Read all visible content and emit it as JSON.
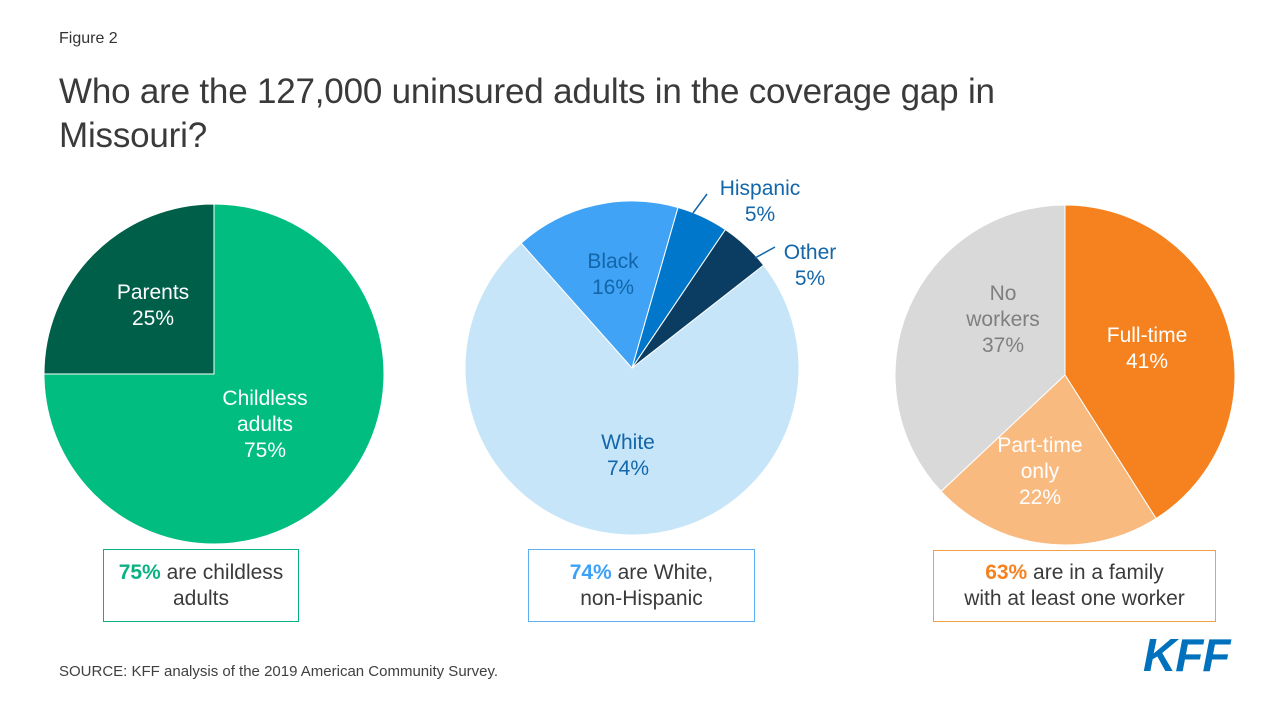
{
  "figure_label": "Figure 2",
  "title_lines": [
    "Who are the 127,000 uninsured adults in the coverage gap in",
    "Missouri?"
  ],
  "chart_data": [
    {
      "type": "pie",
      "name": "family-status",
      "start_angle": 0,
      "slices": [
        {
          "id": "childless-adults",
          "label": "Childless adults",
          "value": 75,
          "color": "#02bd80",
          "label_lines": [
            "Childless",
            "adults",
            "75%"
          ]
        },
        {
          "id": "parents",
          "label": "Parents",
          "value": 25,
          "color": "#005f48",
          "label_lines": [
            "Parents",
            "25%"
          ]
        }
      ]
    },
    {
      "type": "pie",
      "name": "race-ethnicity",
      "start_angle": 52,
      "slices": [
        {
          "id": "white",
          "label": "White",
          "value": 74,
          "color": "#c6e5f8",
          "label_lines": [
            "White",
            "74%"
          ]
        },
        {
          "id": "black",
          "label": "Black",
          "value": 16,
          "color": "#41a3f5",
          "label_lines": [
            "Black",
            "16%"
          ]
        },
        {
          "id": "hispanic",
          "label": "Hispanic",
          "value": 5,
          "color": "#0077cb",
          "label_lines": [
            "Hispanic",
            "5%"
          ]
        },
        {
          "id": "other",
          "label": "Other",
          "value": 5,
          "color": "#0b3d62",
          "label_lines": [
            "Other",
            "5%"
          ]
        }
      ]
    },
    {
      "type": "pie",
      "name": "work-status",
      "start_angle": 0,
      "slices": [
        {
          "id": "full-time",
          "label": "Full-time",
          "value": 41,
          "color": "#f5821f",
          "label_lines": [
            "Full-time",
            "41%"
          ]
        },
        {
          "id": "part-time-only",
          "label": "Part-time only",
          "value": 22,
          "color": "#f9ba80",
          "label_lines": [
            "Part-time",
            "only",
            "22%"
          ]
        },
        {
          "id": "no-workers",
          "label": "No workers",
          "value": 37,
          "color": "#d9d9d9",
          "label_lines": [
            "No",
            "workers",
            "37%"
          ]
        }
      ]
    }
  ],
  "callouts": [
    {
      "highlight": "75%",
      "line1_rest": " are childless",
      "line2": "adults",
      "accent": "#0cb183",
      "border": "#0cb183"
    },
    {
      "highlight": "74%",
      "line1_rest": " are White,",
      "line2": "non-Hispanic",
      "accent": "#3da1f8",
      "border": "#5fb0f2"
    },
    {
      "highlight": "63%",
      "line1_rest": " are in a family",
      "line2": "with at least one worker",
      "accent": "#f5821f",
      "border": "#efa143"
    }
  ],
  "source": "SOURCE: KFF analysis of the 2019 American Community Survey.",
  "logo_text": "KFF",
  "colors": {
    "brand_blue": "#0071bc",
    "title_text": "#3a3a3a",
    "pie_label_blue": "#1266a9",
    "pie_label_gray": "#7f7f7f"
  }
}
